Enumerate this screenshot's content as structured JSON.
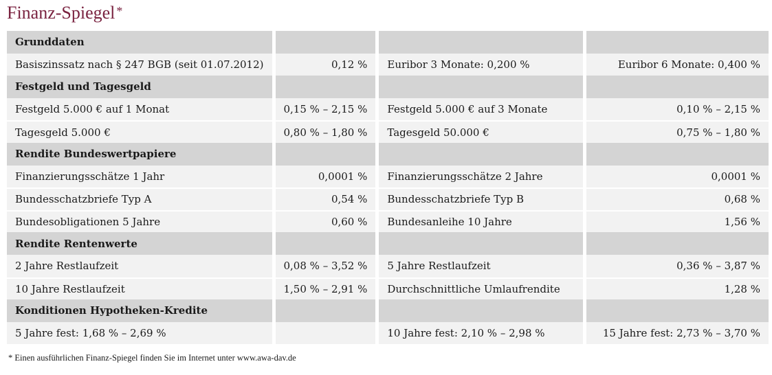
{
  "title": "Finanz-Spiegel",
  "title_marker": "*",
  "colors": {
    "title": "#7a2340",
    "header_bg": "#d4d4d4",
    "row_bg": "#f2f2f2"
  },
  "sections": [
    {
      "heading": "Grunddaten",
      "rows": [
        [
          "Basiszinssatz nach § 247 BGB (seit 01.07.2012)",
          "0,12 %",
          "Euribor 3 Monate: 0,200 %",
          "Euribor 6 Monate: 0,400 %"
        ]
      ]
    },
    {
      "heading": "Festgeld und Tagesgeld",
      "rows": [
        [
          "Festgeld 5.000 € auf 1 Monat",
          "0,15 % – 2,15 %",
          "Festgeld 5.000 € auf 3 Monate",
          "0,10 % – 2,15 %"
        ],
        [
          "Tagesgeld 5.000 €",
          "0,80 % – 1,80 %",
          "Tagesgeld 50.000 €",
          "0,75 % – 1,80 %"
        ]
      ]
    },
    {
      "heading": "Rendite Bundeswertpapiere",
      "rows": [
        [
          "Finanzierungsschätze 1 Jahr",
          "0,0001 %",
          "Finanzierungsschätze 2 Jahre",
          "0,0001 %"
        ],
        [
          "Bundesschatzbriefe Typ A",
          "0,54 %",
          "Bundesschatzbriefe Typ B",
          "0,68 %"
        ],
        [
          "Bundesobligationen 5 Jahre",
          "0,60 %",
          "Bundesanleihe 10 Jahre",
          "1,56 %"
        ]
      ]
    },
    {
      "heading": "Rendite Rentenwerte",
      "rows": [
        [
          "2 Jahre Restlaufzeit",
          "0,08 % – 3,52 %",
          "5 Jahre Restlaufzeit",
          "0,36 % – 3,87 %"
        ],
        [
          "10 Jahre Restlaufzeit",
          "1,50 % – 2,91 %",
          "Durchschnittliche Umlaufrendite",
          "1,28 %"
        ]
      ]
    },
    {
      "heading": "Konditionen Hypotheken-Kredite",
      "rows": [
        [
          "5 Jahre fest: 1,68 % – 2,69 %",
          "",
          "10 Jahre fest: 2,10 % – 2,98 %",
          "15 Jahre fest: 2,73 % – 3,70 %"
        ]
      ]
    }
  ],
  "footnote": "* Einen ausführlichen Finanz-Spiegel finden Sie im Internet unter www.awa-dav.de"
}
